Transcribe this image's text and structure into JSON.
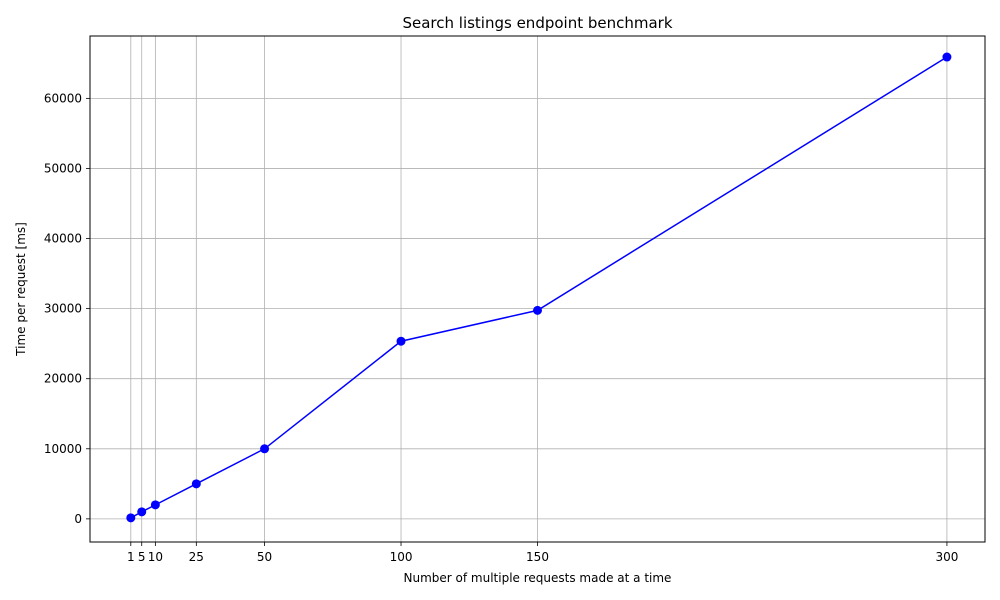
{
  "chart_data": {
    "type": "line",
    "title": "Search listings endpoint benchmark",
    "xlabel": "Number of multiple requests made at a time",
    "ylabel": "Time per request [ms]",
    "xlim": [
      -13.95,
      313.95
    ],
    "ylim": [
      -3300,
      68900
    ],
    "xticks": [
      1,
      5,
      10,
      25,
      50,
      100,
      150,
      300
    ],
    "xtick_labels": [
      "1",
      "5",
      "10",
      "25",
      "50",
      "100",
      "150",
      "300"
    ],
    "yticks": [
      0,
      10000,
      20000,
      30000,
      40000,
      50000,
      60000
    ],
    "ytick_labels": [
      "0",
      "10000",
      "20000",
      "30000",
      "40000",
      "50000",
      "60000"
    ],
    "grid": true,
    "series": [
      {
        "color": "#0000ff",
        "marker": "circle",
        "x": [
          1,
          5,
          10,
          25,
          50,
          100,
          150,
          300
        ],
        "y": [
          150,
          1000,
          2000,
          5000,
          10000,
          25350,
          29750,
          65900
        ]
      }
    ]
  }
}
